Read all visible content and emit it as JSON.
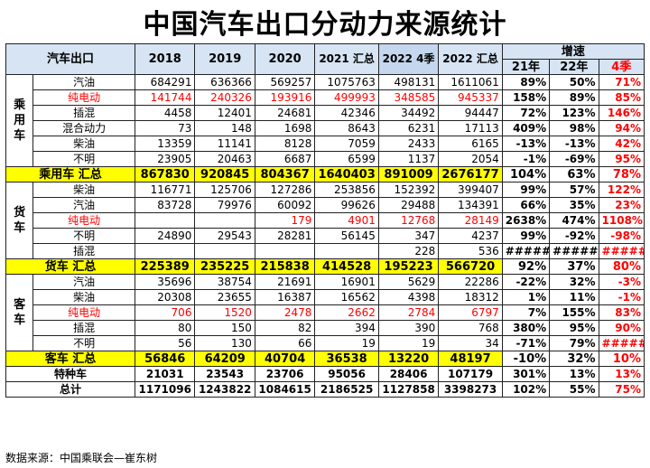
{
  "title": "中国汽车出口分动力来源统计",
  "headers": {
    "corner": "汽车出口",
    "cols": [
      "2018",
      "2019",
      "2020",
      "2021 汇总",
      "2022 4季",
      "2022 汇总"
    ],
    "growth_group": "增速",
    "growth_cols": [
      "21年",
      "22年",
      "4季"
    ]
  },
  "groups": {
    "passenger": "乘用车",
    "truck": "货车",
    "bus": "客车"
  },
  "passenger_rows": [
    {
      "name": "汽油",
      "red": false,
      "v": [
        "684291",
        "636366",
        "569257",
        "1075763",
        "498131",
        "1611061"
      ],
      "g": [
        "89%",
        "50%",
        "71%"
      ]
    },
    {
      "name": "纯电动",
      "red": true,
      "v": [
        "141744",
        "240326",
        "193916",
        "499993",
        "348585",
        "945337"
      ],
      "g": [
        "158%",
        "89%",
        "85%"
      ]
    },
    {
      "name": "插混",
      "red": false,
      "v": [
        "4458",
        "12401",
        "24681",
        "42346",
        "34492",
        "94447"
      ],
      "g": [
        "72%",
        "123%",
        "146%"
      ]
    },
    {
      "name": "混合动力",
      "red": false,
      "v": [
        "73",
        "148",
        "1698",
        "8643",
        "6231",
        "17113"
      ],
      "g": [
        "409%",
        "98%",
        "94%"
      ]
    },
    {
      "name": "柴油",
      "red": false,
      "v": [
        "13359",
        "11141",
        "8128",
        "7059",
        "2433",
        "6165"
      ],
      "g": [
        "-13%",
        "-13%",
        "42%"
      ]
    },
    {
      "name": "不明",
      "red": false,
      "v": [
        "23905",
        "20463",
        "6687",
        "6599",
        "1137",
        "2054"
      ],
      "g": [
        "-1%",
        "-69%",
        "95%"
      ]
    }
  ],
  "passenger_total": {
    "name": "乘用车 汇总",
    "v": [
      "867830",
      "920845",
      "804367",
      "1640403",
      "891009",
      "2676177"
    ],
    "g": [
      "104%",
      "63%",
      "78%"
    ]
  },
  "truck_rows": [
    {
      "name": "柴油",
      "red": false,
      "v": [
        "116771",
        "125706",
        "127286",
        "253856",
        "152392",
        "399407"
      ],
      "g": [
        "99%",
        "57%",
        "122%"
      ]
    },
    {
      "name": "汽油",
      "red": false,
      "v": [
        "83728",
        "79976",
        "60092",
        "99626",
        "29488",
        "134391"
      ],
      "g": [
        "66%",
        "35%",
        "23%"
      ]
    },
    {
      "name": "纯电动",
      "red": true,
      "v": [
        "",
        "",
        "179",
        "4901",
        "12768",
        "28149"
      ],
      "g": [
        "2638%",
        "474%",
        "1108%"
      ]
    },
    {
      "name": "不明",
      "red": false,
      "v": [
        "24890",
        "29543",
        "28281",
        "56145",
        "347",
        "4237"
      ],
      "g": [
        "99%",
        "-92%",
        "-98%"
      ]
    },
    {
      "name": "插混",
      "red": false,
      "v": [
        "",
        "",
        "",
        "",
        "228",
        "536"
      ],
      "g": [
        "#####",
        "#####",
        "#####"
      ]
    }
  ],
  "truck_total": {
    "name": "货车 汇总",
    "v": [
      "225389",
      "235225",
      "215838",
      "414528",
      "195223",
      "566720"
    ],
    "g": [
      "92%",
      "37%",
      "80%"
    ]
  },
  "bus_rows": [
    {
      "name": "汽油",
      "red": false,
      "v": [
        "35696",
        "38754",
        "21691",
        "16901",
        "5629",
        "22286"
      ],
      "g": [
        "-22%",
        "32%",
        "-3%"
      ]
    },
    {
      "name": "柴油",
      "red": false,
      "v": [
        "20308",
        "23655",
        "16387",
        "16562",
        "4398",
        "18312"
      ],
      "g": [
        "1%",
        "11%",
        "-1%"
      ]
    },
    {
      "name": "纯电动",
      "red": true,
      "v": [
        "706",
        "1520",
        "2478",
        "2662",
        "2784",
        "6797"
      ],
      "g": [
        "7%",
        "155%",
        "83%"
      ]
    },
    {
      "name": "插混",
      "red": false,
      "v": [
        "80",
        "150",
        "82",
        "394",
        "390",
        "768"
      ],
      "g": [
        "380%",
        "95%",
        "90%"
      ]
    },
    {
      "name": "不明",
      "red": false,
      "v": [
        "56",
        "130",
        "66",
        "19",
        "19",
        "34"
      ],
      "g": [
        "-71%",
        "79%",
        "#####"
      ]
    }
  ],
  "bus_total": {
    "name": "客车 汇总",
    "v": [
      "56846",
      "64209",
      "40704",
      "36538",
      "13220",
      "48197"
    ],
    "g": [
      "-10%",
      "32%",
      "10%"
    ]
  },
  "special": {
    "name": "特种车",
    "v": [
      "21031",
      "23543",
      "23706",
      "95056",
      "28406",
      "107179"
    ],
    "g": [
      "301%",
      "13%",
      "13%"
    ]
  },
  "grand_total": {
    "name": "总计",
    "v": [
      "1171096",
      "1243822",
      "1084615",
      "2186525",
      "1127858",
      "3398273"
    ],
    "g": [
      "102%",
      "55%",
      "75%"
    ]
  },
  "source": "数据来源：中国乘联会—崔东树",
  "colors": {
    "header_bg": "#d6e4f3",
    "total_bg": "#ffff00",
    "highlight": "#ff0000"
  }
}
